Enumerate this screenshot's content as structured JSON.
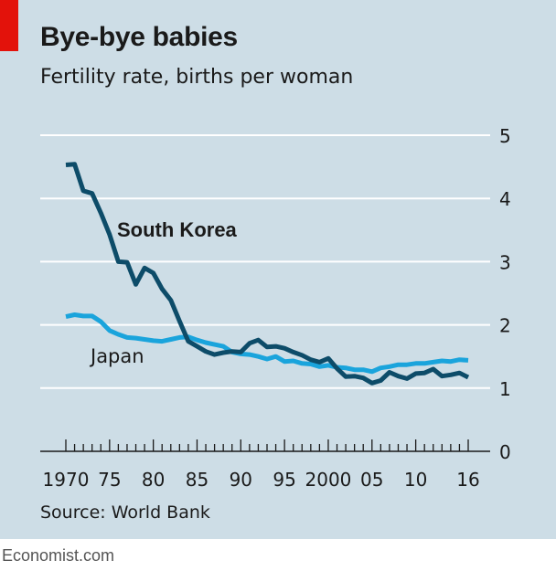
{
  "header": {
    "title": "Bye-bye babies",
    "subtitle": "Fertility rate, births per woman"
  },
  "footer": {
    "source": "Source: World Bank",
    "brand": "Economist.com"
  },
  "colors": {
    "background": "#cddde6",
    "accent": "#e3120b",
    "south_korea": "#0d4c69",
    "japan": "#1aa4dc",
    "grid": "#ffffff",
    "axis": "#1a1a1a"
  },
  "chart_data": {
    "type": "line",
    "title": "Bye-bye babies",
    "subtitle": "Fertility rate, births per woman",
    "xlabel": "",
    "ylabel": "",
    "xlim": [
      1970,
      2016
    ],
    "ylim": [
      0,
      5
    ],
    "y_ticks": [
      0,
      1,
      2,
      3,
      4,
      5
    ],
    "y_tick_labels": [
      "0",
      "1",
      "2",
      "3",
      "4",
      "5"
    ],
    "x_ticks": [
      1970,
      1975,
      1980,
      1985,
      1990,
      1995,
      2000,
      2005,
      2010,
      2016
    ],
    "x_tick_labels": [
      "1970",
      "75",
      "80",
      "85",
      "90",
      "95",
      "2000",
      "05",
      "10",
      "16"
    ],
    "y_axis_position": "right",
    "grid": true,
    "legend": "direct labels",
    "x": [
      1970,
      1971,
      1972,
      1973,
      1974,
      1975,
      1976,
      1977,
      1978,
      1979,
      1980,
      1981,
      1982,
      1983,
      1984,
      1985,
      1986,
      1987,
      1988,
      1989,
      1990,
      1991,
      1992,
      1993,
      1994,
      1995,
      1996,
      1997,
      1998,
      1999,
      2000,
      2001,
      2002,
      2003,
      2004,
      2005,
      2006,
      2007,
      2008,
      2009,
      2010,
      2011,
      2012,
      2013,
      2014,
      2015,
      2016
    ],
    "series": [
      {
        "name": "South Korea",
        "color": "#0d4c69",
        "values": [
          4.53,
          4.54,
          4.12,
          4.08,
          3.77,
          3.43,
          3.0,
          2.99,
          2.64,
          2.9,
          2.82,
          2.57,
          2.39,
          2.06,
          1.74,
          1.66,
          1.58,
          1.53,
          1.56,
          1.58,
          1.57,
          1.71,
          1.76,
          1.65,
          1.66,
          1.63,
          1.57,
          1.52,
          1.45,
          1.41,
          1.47,
          1.31,
          1.18,
          1.19,
          1.16,
          1.08,
          1.12,
          1.25,
          1.19,
          1.15,
          1.23,
          1.24,
          1.3,
          1.19,
          1.21,
          1.24,
          1.17
        ]
      },
      {
        "name": "Japan",
        "color": "#1aa4dc",
        "values": [
          2.13,
          2.16,
          2.14,
          2.14,
          2.05,
          1.91,
          1.85,
          1.8,
          1.79,
          1.77,
          1.75,
          1.74,
          1.77,
          1.8,
          1.81,
          1.76,
          1.72,
          1.69,
          1.66,
          1.57,
          1.54,
          1.53,
          1.5,
          1.46,
          1.5,
          1.42,
          1.43,
          1.39,
          1.38,
          1.34,
          1.36,
          1.33,
          1.32,
          1.29,
          1.29,
          1.26,
          1.32,
          1.34,
          1.37,
          1.37,
          1.39,
          1.39,
          1.41,
          1.43,
          1.42,
          1.45,
          1.44
        ]
      }
    ],
    "annotations": [
      {
        "text": "South Korea",
        "series": "South Korea"
      },
      {
        "text": "Japan",
        "series": "Japan"
      }
    ]
  }
}
